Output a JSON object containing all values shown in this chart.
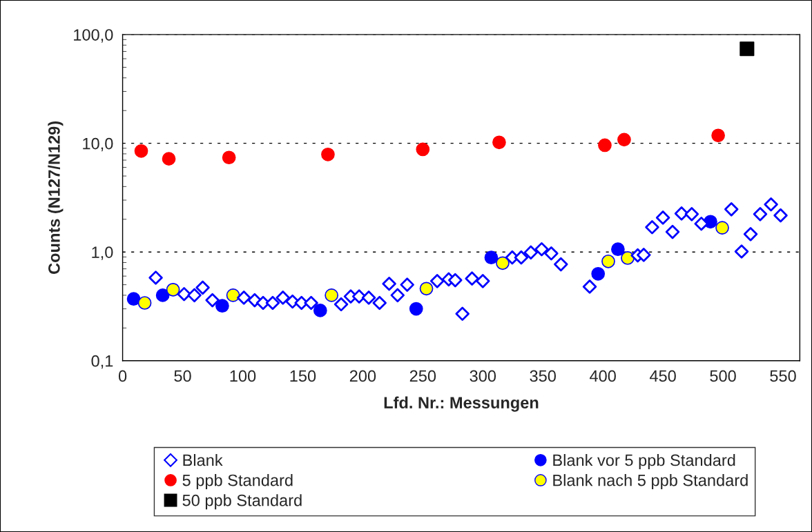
{
  "chart_data": {
    "type": "scatter",
    "xlabel": "Lfd. Nr.: Messungen",
    "ylabel": "Counts (N127/N129)",
    "log": "y",
    "grid": "y",
    "legend": "bottom",
    "xlim": [
      0,
      564
    ],
    "xticks": [
      0,
      50,
      100,
      150,
      200,
      250,
      300,
      350,
      400,
      450,
      500,
      550
    ],
    "ylim": [
      0.1,
      100
    ],
    "yticks": [
      {
        "value": 0.1,
        "label": "0,1"
      },
      {
        "value": 1,
        "label": "1,0"
      },
      {
        "value": 10,
        "label": "10,0"
      },
      {
        "value": 100,
        "label": "100,0"
      }
    ],
    "series": [
      {
        "name": "Blank",
        "color": "#0000ff",
        "marker": "diamond",
        "x": [
          27.6,
          51.2,
          59.8,
          66.7,
          74.8,
          101,
          110,
          117,
          125,
          133.5,
          141.5,
          149,
          157,
          182,
          190,
          197,
          205,
          214,
          222,
          229,
          237,
          262,
          271.6,
          277,
          283,
          291,
          300,
          324.5,
          332,
          340,
          349,
          357,
          365,
          389,
          429,
          434,
          441,
          450,
          458,
          465.5,
          474,
          482,
          507,
          515.5,
          523,
          531,
          540,
          548
        ],
        "values": [
          0.58,
          0.41,
          0.4,
          0.47,
          0.36,
          0.38,
          0.36,
          0.34,
          0.34,
          0.38,
          0.35,
          0.34,
          0.34,
          0.33,
          0.39,
          0.39,
          0.38,
          0.34,
          0.51,
          0.4,
          0.5,
          0.54,
          0.56,
          0.55,
          0.27,
          0.57,
          0.54,
          0.89,
          0.89,
          0.99,
          1.06,
          0.97,
          0.77,
          0.48,
          0.93,
          0.94,
          1.69,
          2.07,
          1.53,
          2.26,
          2.23,
          1.82,
          2.47,
          1.01,
          1.46,
          2.23,
          2.74,
          2.17
        ]
      },
      {
        "name": "5 ppb Standard",
        "color": "#ff0000",
        "marker": "circle",
        "x": [
          15.5,
          38.5,
          88.6,
          171,
          250,
          313.6,
          401.6,
          417.7,
          496
        ],
        "values": [
          8.5,
          7.2,
          7.4,
          7.9,
          8.8,
          10.2,
          9.6,
          10.8,
          11.8
        ]
      },
      {
        "name": "50 ppb Standard",
        "color": "#000000",
        "marker": "square",
        "x": [
          520
        ],
        "values": [
          74
        ]
      },
      {
        "name": "Blank vor 5 ppb Standard",
        "color": "#0000ff",
        "marker": "circle",
        "x": [
          9.2,
          33.4,
          83,
          164.6,
          244.5,
          307,
          396,
          412.5,
          489.6
        ],
        "values": [
          0.37,
          0.4,
          0.32,
          0.29,
          0.3,
          0.89,
          0.63,
          1.06,
          1.9
        ]
      },
      {
        "name": "Blank nach 5 ppb Standard",
        "color": "#ffff00",
        "marker": "circle",
        "x": [
          18.4,
          42,
          92,
          174,
          253,
          316.5,
          404.5,
          420.6,
          499.4
        ],
        "values": [
          0.34,
          0.45,
          0.4,
          0.4,
          0.46,
          0.79,
          0.82,
          0.88,
          1.67
        ]
      }
    ]
  }
}
